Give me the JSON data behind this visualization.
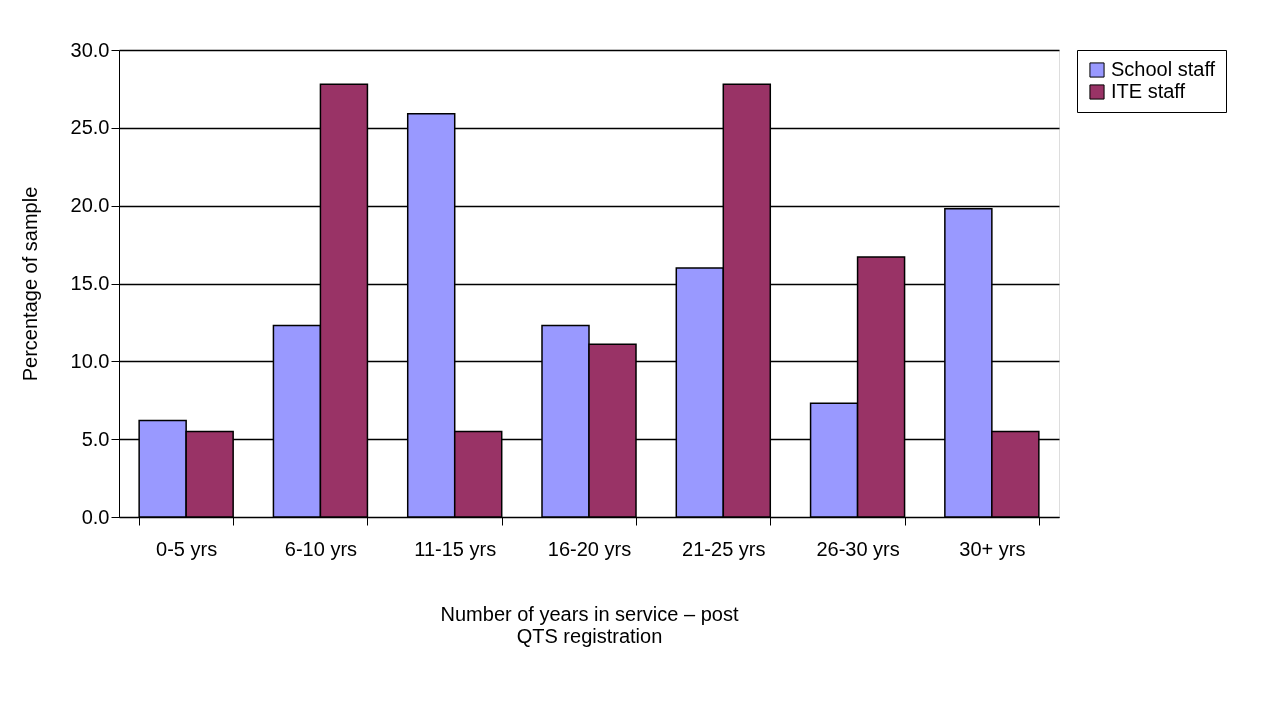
{
  "chart_data": {
    "type": "bar",
    "xlabel": "Number of years in service – post QTS registration",
    "ylabel": "Percentage of sample",
    "categories": [
      "0-5 yrs",
      "6-10 yrs",
      "11-15 yrs",
      "16-20 yrs",
      "21-25 yrs",
      "26-30 yrs",
      "30+ yrs"
    ],
    "series": [
      {
        "name": "School staff",
        "color": "#9999ff",
        "values": [
          6.2,
          12.3,
          25.9,
          12.3,
          16.0,
          7.3,
          19.8
        ]
      },
      {
        "name": "ITE staff",
        "color": "#993366",
        "values": [
          5.5,
          27.8,
          5.5,
          11.1,
          27.8,
          16.7,
          5.5
        ]
      }
    ],
    "ylim": [
      0,
      30
    ],
    "yticks": [
      {
        "value": 0,
        "label": "0.0"
      },
      {
        "value": 5,
        "label": "5.0"
      },
      {
        "value": 10,
        "label": "10.0"
      },
      {
        "value": 15,
        "label": "15.0"
      },
      {
        "value": 20,
        "label": "20.0"
      },
      {
        "value": 25,
        "label": "25.0"
      },
      {
        "value": 30,
        "label": "30.0"
      }
    ],
    "grid": "y",
    "legend": "right"
  }
}
